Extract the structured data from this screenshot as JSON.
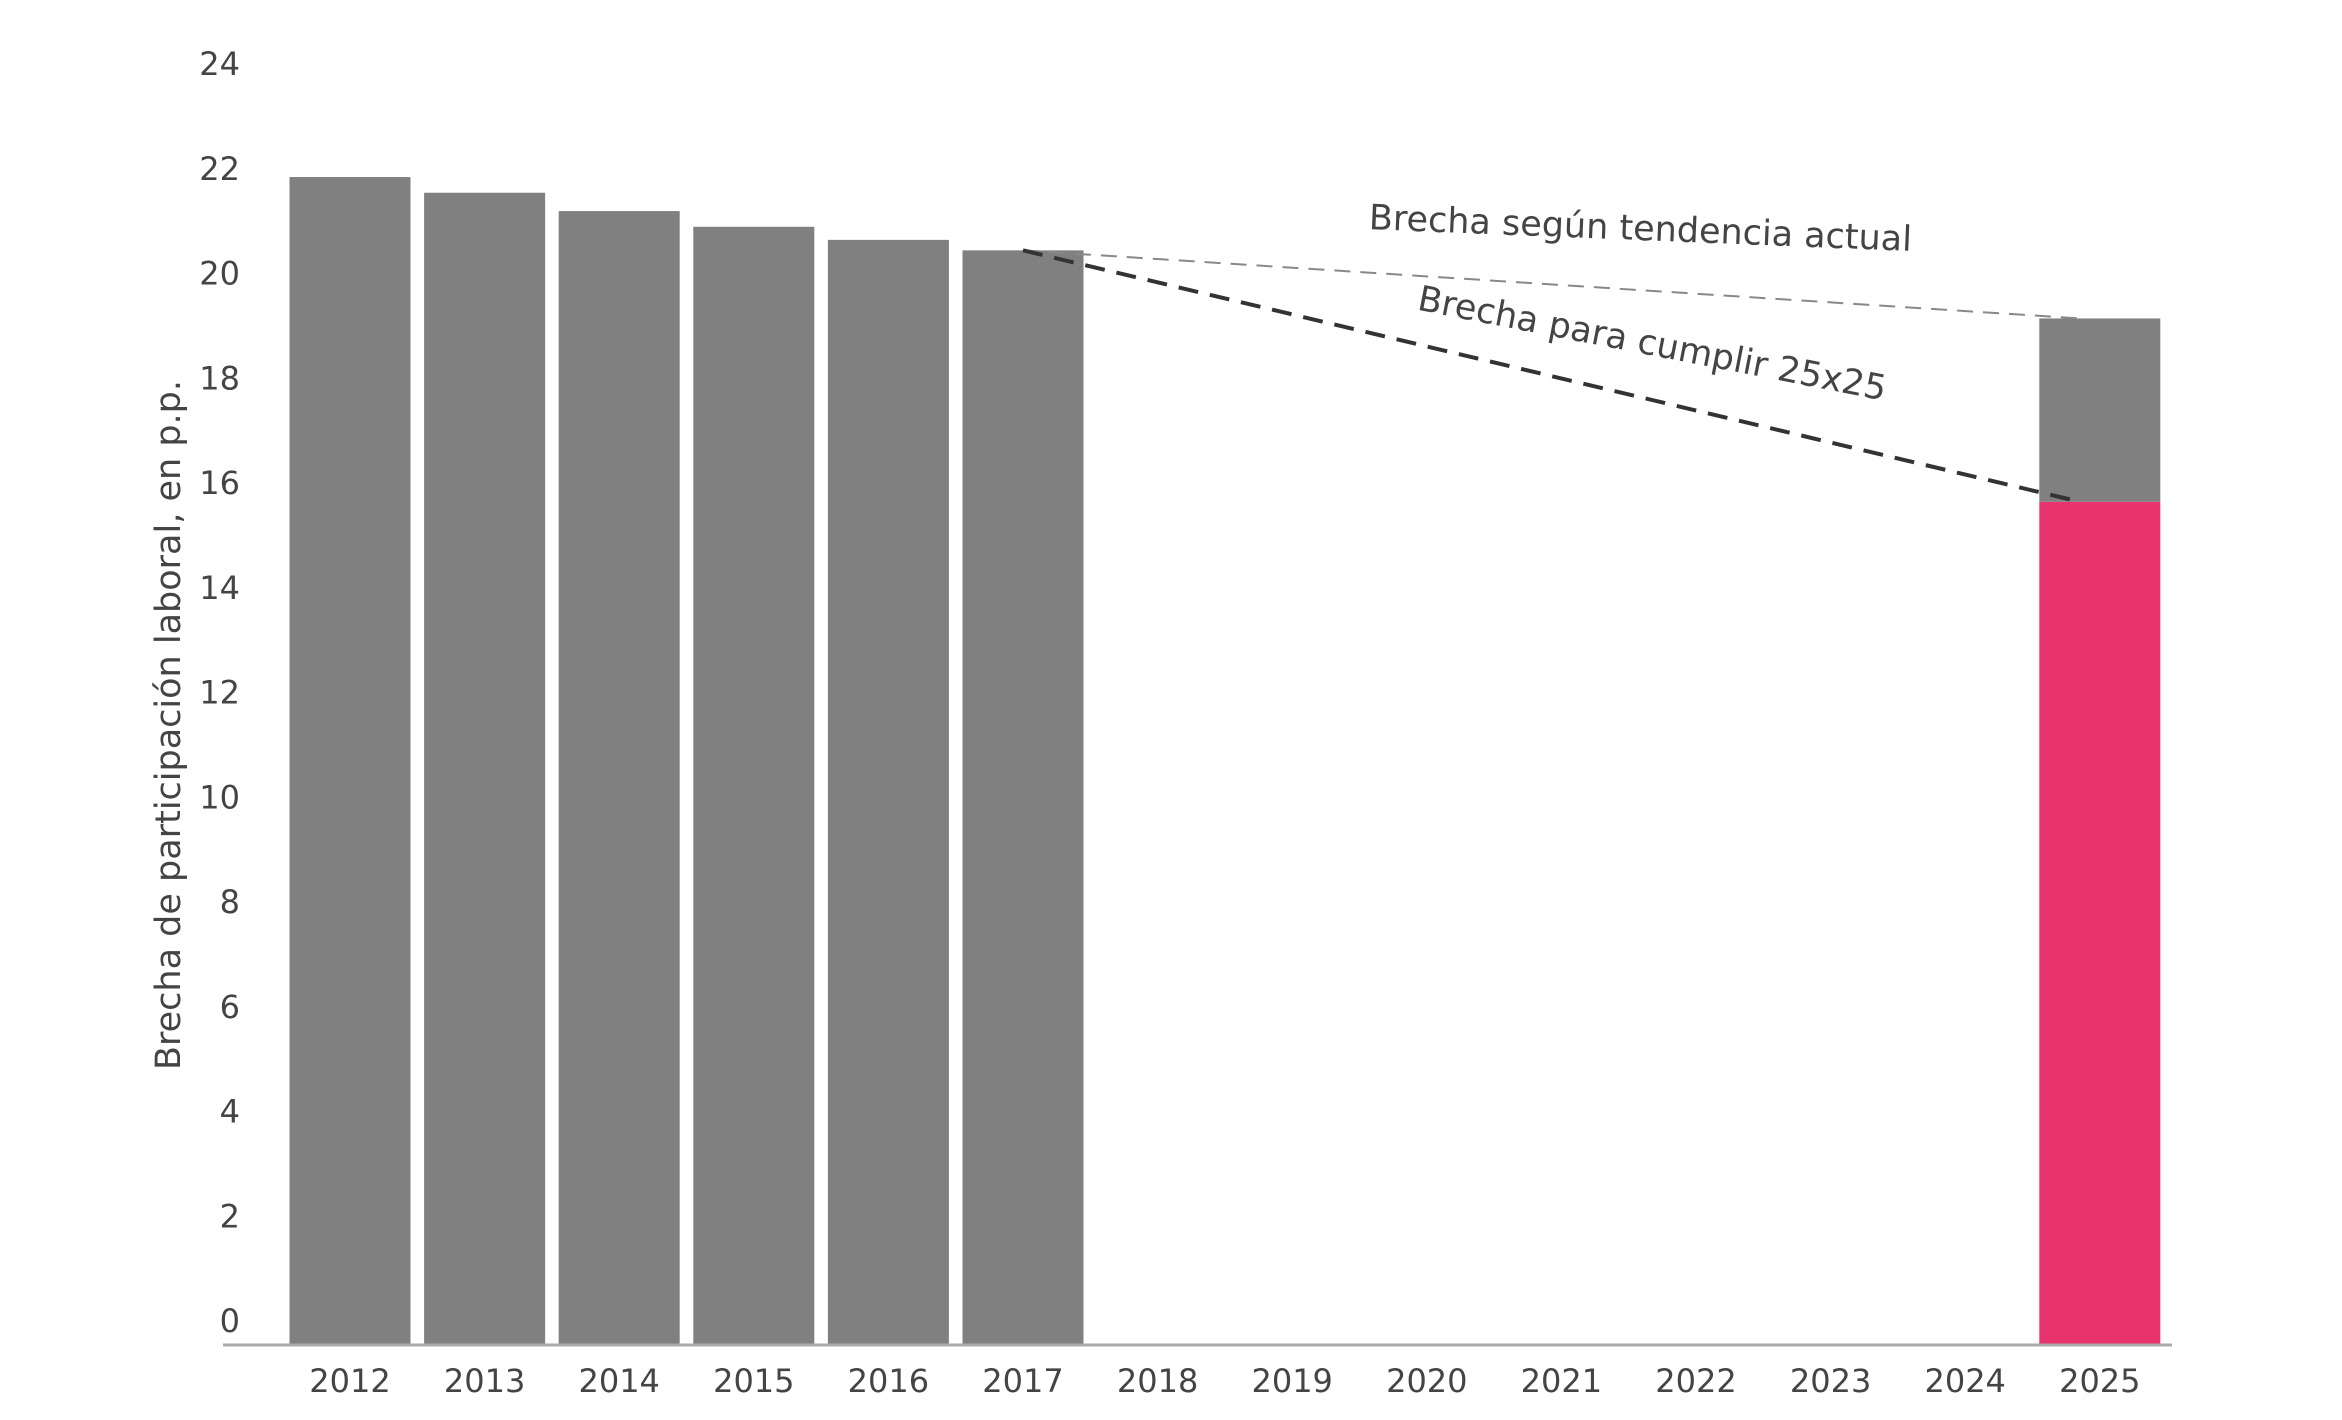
{
  "chart_data": {
    "type": "bar",
    "y_label": "Brecha de participación laboral, en p.p.",
    "categories": [
      "2012",
      "2013",
      "2014",
      "2015",
      "2016",
      "2017",
      "2018",
      "2019",
      "2020",
      "2021",
      "2022",
      "2023",
      "2024",
      "2025"
    ],
    "series": [
      {
        "color": "#e8336f",
        "values": [
          null,
          null,
          null,
          null,
          null,
          null,
          null,
          null,
          null,
          null,
          null,
          null,
          null,
          16.1
        ]
      },
      {
        "color": "#808080",
        "values": [
          22.3,
          22.0,
          21.65,
          21.35,
          21.1,
          20.9,
          null,
          null,
          null,
          null,
          null,
          null,
          null,
          3.5
        ]
      }
    ],
    "stacked": true,
    "annotations": [
      "Brecha según tendencia actual",
      "Brecha para cumplir 25x25"
    ],
    "ylim": [
      0,
      24
    ],
    "yticks": [
      0,
      2,
      4,
      6,
      8,
      10,
      12,
      14,
      16,
      18,
      20,
      22,
      24
    ],
    "grid": false
  }
}
